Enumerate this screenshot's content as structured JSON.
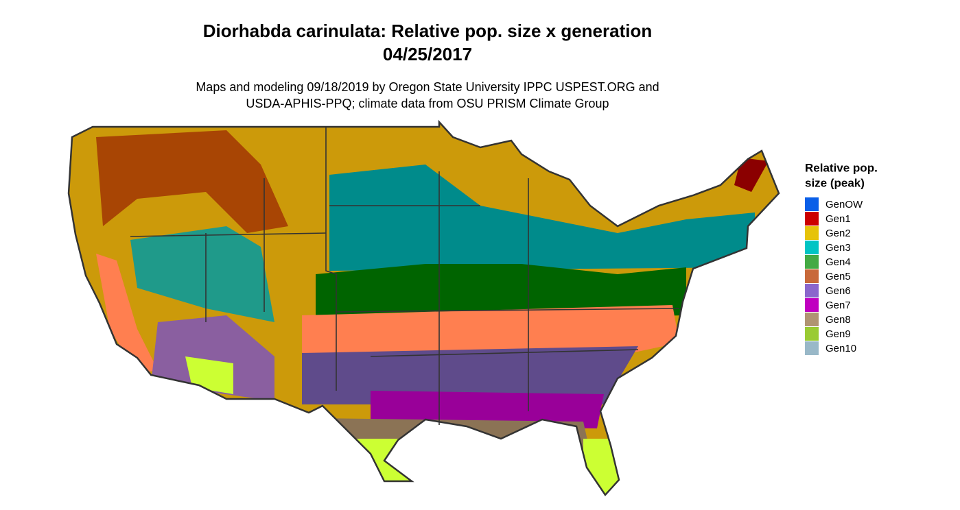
{
  "title": [
    "Diorhabda carinulata: Relative pop. size x generation",
    "04/25/2017"
  ],
  "subtitle": [
    "Maps and modeling 09/18/2019 by Oregon State University IPPC USPEST.ORG and",
    "USDA-APHIS-PPQ; climate data from OSU PRISM Climate Group"
  ],
  "legend": {
    "title": [
      "Relative pop.",
      "size (peak)"
    ],
    "items": [
      {
        "name": "GenOW",
        "color": "#0a5fe8"
      },
      {
        "name": "Gen1",
        "color": "#cc0000"
      },
      {
        "name": "Gen2",
        "color": "#e6c30a"
      },
      {
        "name": "Gen3",
        "color": "#00c4c4"
      },
      {
        "name": "Gen4",
        "color": "#44aa44"
      },
      {
        "name": "Gen5",
        "color": "#c8693a"
      },
      {
        "name": "Gen6",
        "color": "#8a66cc"
      },
      {
        "name": "Gen7",
        "color": "#c000c0"
      },
      {
        "name": "Gen8",
        "color": "#b09472"
      },
      {
        "name": "Gen9",
        "color": "#9acb33"
      },
      {
        "name": "Gen10",
        "color": "#99b8c8"
      }
    ]
  }
}
